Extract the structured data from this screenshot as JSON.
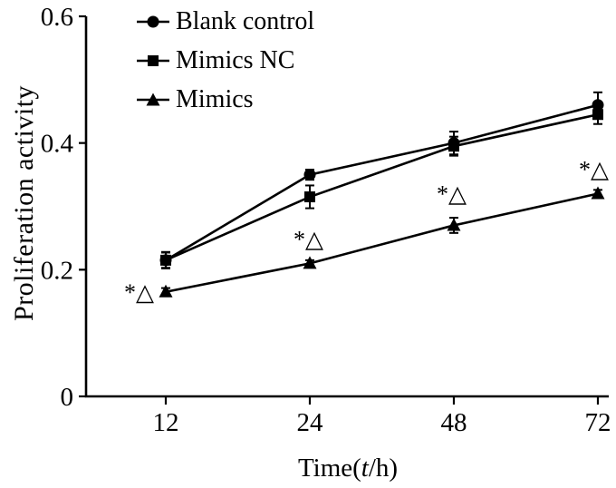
{
  "chart_data": {
    "type": "line",
    "title": "",
    "xlabel": "Time(t/h)",
    "xlabel_parts": {
      "prefix": "Time(",
      "italic": "t",
      "suffix": "/h)"
    },
    "ylabel": "Proliferation activity",
    "categories": [
      12,
      24,
      48,
      72
    ],
    "x_tick_labels": [
      "12",
      "24",
      "48",
      "72"
    ],
    "y_ticks": [
      0,
      0.2,
      0.4,
      0.6
    ],
    "y_tick_labels": [
      "0",
      "0.2",
      "0.4",
      "0.6"
    ],
    "ylim": [
      0,
      0.6
    ],
    "grid": false,
    "legend_position": "top-left-inside",
    "series": [
      {
        "name": "Blank control",
        "marker": "circle",
        "values": [
          0.215,
          0.35,
          0.4,
          0.46
        ],
        "errors": [
          0.013,
          0.008,
          0.018,
          0.02
        ]
      },
      {
        "name": "Mimics NC",
        "marker": "square",
        "values": [
          0.215,
          0.315,
          0.395,
          0.445
        ],
        "errors": [
          0.012,
          0.018,
          0.015,
          0.015
        ]
      },
      {
        "name": "Mimics",
        "marker": "triangle",
        "values": [
          0.165,
          0.21,
          0.27,
          0.32
        ],
        "errors": [
          0.006,
          0.005,
          0.012,
          0.006
        ]
      }
    ],
    "annotations": [
      {
        "text": "*△",
        "series": "Mimics",
        "x_index": 0
      },
      {
        "text": "*△",
        "series": "Mimics",
        "x_index": 1
      },
      {
        "text": "*△",
        "series": "Mimics",
        "x_index": 2
      },
      {
        "text": "*△",
        "series": "Mimics",
        "x_index": 3
      }
    ],
    "colors": {
      "line": "#000000",
      "background": "#ffffff"
    }
  }
}
